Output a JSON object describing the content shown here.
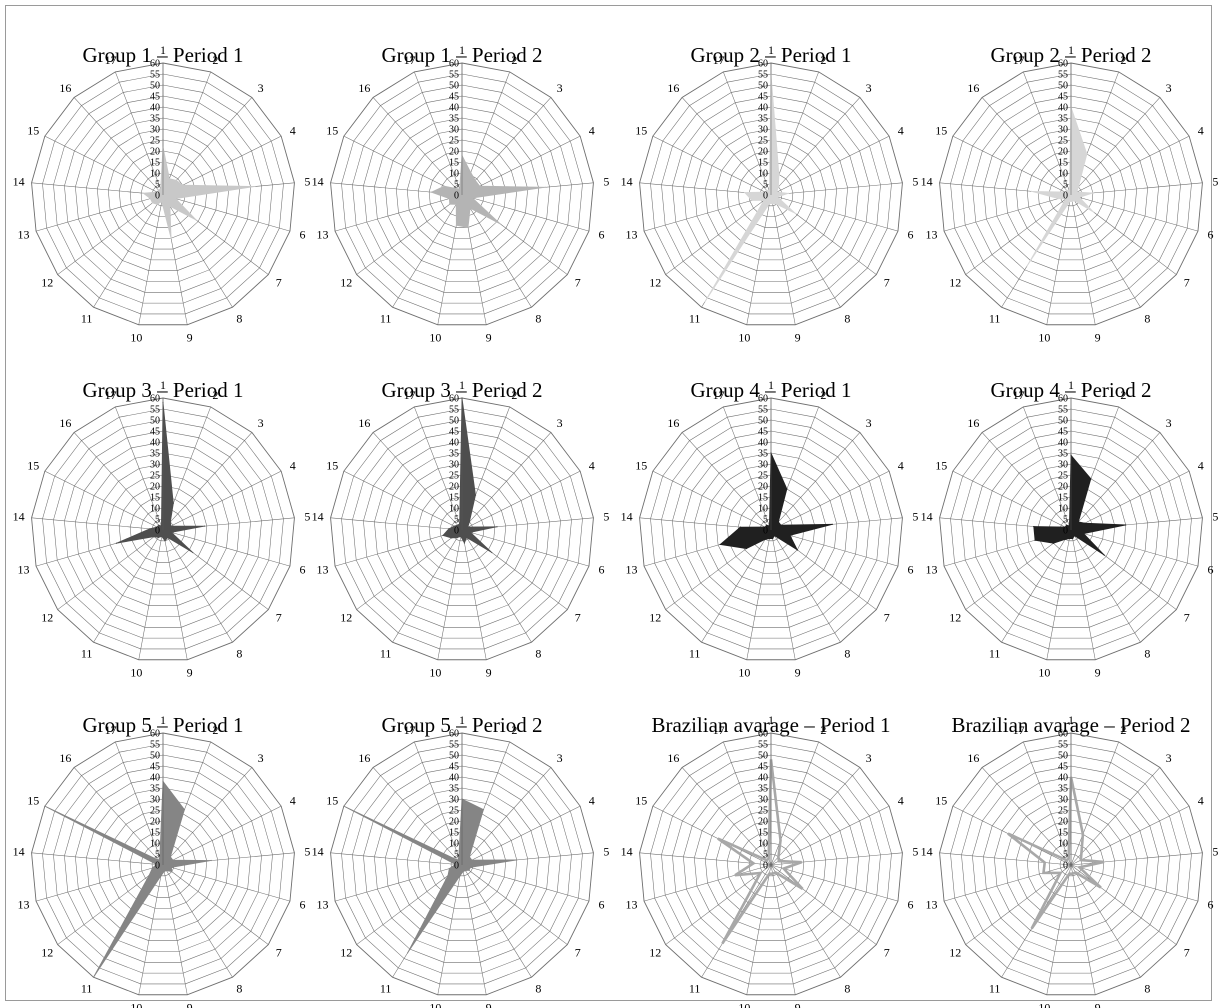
{
  "axis_labels": [
    "1",
    "2",
    "3",
    "4",
    "5",
    "6",
    "7",
    "8",
    "9",
    "10",
    "11",
    "12",
    "13",
    "14",
    "15",
    "16",
    "17"
  ],
  "tick_labels": [
    "0",
    "5",
    "10",
    "15",
    "20",
    "25",
    "30",
    "35",
    "40",
    "45",
    "50",
    "55",
    "60"
  ],
  "chart_data": [
    {
      "type": "radar",
      "title": "Group 1 – Period 1",
      "rmin": 0,
      "rmax": 60,
      "tick_step": 5,
      "style": "fill",
      "color": "#c8c8c8",
      "series": [
        {
          "values": [
            22,
            8,
            9,
            10,
            42,
            6,
            19,
            6,
            20,
            3,
            5,
            6,
            6,
            9,
            3,
            3,
            3
          ]
        }
      ]
    },
    {
      "type": "radar",
      "title": "Group 1 – Period 2",
      "rmin": 0,
      "rmax": 60,
      "tick_step": 5,
      "style": "fill",
      "color": "#b4b4b4",
      "series": [
        {
          "values": [
            18,
            11,
            9,
            9,
            38,
            5,
            22,
            7,
            15,
            14,
            5,
            7,
            6,
            14,
            9,
            4,
            3
          ]
        }
      ]
    },
    {
      "type": "radar",
      "title": "Group 2 – Period 1",
      "rmin": 0,
      "rmax": 60,
      "tick_step": 5,
      "style": "fill",
      "color": "#d6d6d6",
      "series": [
        {
          "values": [
            55,
            10,
            5,
            3,
            8,
            3,
            14,
            5,
            4,
            4,
            57,
            4,
            9,
            12,
            3,
            3,
            2
          ]
        }
      ]
    },
    {
      "type": "radar",
      "title": "Group 2 – Period 2",
      "rmin": 0,
      "rmax": 60,
      "tick_step": 5,
      "style": "fill",
      "color": "#d6d6d6",
      "series": [
        {
          "values": [
            40,
            20,
            5,
            3,
            10,
            4,
            13,
            3,
            3,
            3,
            38,
            3,
            6,
            18,
            3,
            3,
            2
          ]
        }
      ]
    },
    {
      "type": "radar",
      "title": "Group 3 – Period 1",
      "rmin": 0,
      "rmax": 60,
      "tick_step": 5,
      "style": "fill",
      "color": "#4e4e4e",
      "series": [
        {
          "values": [
            58,
            13,
            5,
            4,
            19,
            4,
            17,
            4,
            5,
            3,
            4,
            5,
            22,
            6,
            3,
            3,
            2
          ]
        }
      ]
    },
    {
      "type": "radar",
      "title": "Group 3 – Period 2",
      "rmin": 0,
      "rmax": 60,
      "tick_step": 5,
      "style": "fill",
      "color": "#4e4e4e",
      "series": [
        {
          "values": [
            60,
            17,
            5,
            3,
            16,
            4,
            17,
            4,
            6,
            3,
            4,
            6,
            9,
            6,
            4,
            3,
            3
          ]
        }
      ]
    },
    {
      "type": "radar",
      "title": "Group 4 – Period 1",
      "rmin": 0,
      "rmax": 60,
      "tick_step": 5,
      "style": "fill",
      "color": "#202020",
      "series": [
        {
          "values": [
            35,
            20,
            5,
            5,
            28,
            9,
            15,
            3,
            4,
            4,
            5,
            14,
            24,
            14,
            3,
            3,
            2
          ]
        }
      ]
    },
    {
      "type": "radar",
      "title": "Group 4 – Period 2",
      "rmin": 0,
      "rmax": 60,
      "tick_step": 5,
      "style": "fill",
      "color": "#202020",
      "series": [
        {
          "values": [
            34,
            25,
            5,
            7,
            25,
            6,
            19,
            3,
            4,
            4,
            5,
            10,
            17,
            17,
            3,
            3,
            2
          ]
        }
      ]
    },
    {
      "type": "radar",
      "title": "Group 5 – Period 1",
      "rmin": 0,
      "rmax": 60,
      "tick_step": 5,
      "style": "fill",
      "color": "#858585",
      "series": [
        {
          "values": [
            38,
            27,
            5,
            5,
            22,
            4,
            5,
            3,
            3,
            5,
            60,
            8,
            5,
            3,
            60,
            3,
            4
          ]
        }
      ]
    },
    {
      "type": "radar",
      "title": "Group 5 – Period 2",
      "rmin": 0,
      "rmax": 60,
      "tick_step": 5,
      "style": "fill",
      "color": "#858585",
      "series": [
        {
          "values": [
            30,
            27,
            5,
            5,
            25,
            4,
            4,
            3,
            3,
            5,
            47,
            8,
            6,
            3,
            60,
            3,
            4
          ]
        }
      ]
    },
    {
      "type": "radar",
      "title": "Brazilian avarage – Period 1",
      "rmin": 0,
      "rmax": 60,
      "tick_step": 5,
      "style": "line",
      "color": "#a8a8a8",
      "series": [
        {
          "values": [
            48,
            12,
            5,
            4,
            14,
            6,
            18,
            4,
            4,
            4,
            42,
            6,
            17,
            8,
            27,
            3,
            3
          ]
        }
      ]
    },
    {
      "type": "radar",
      "title": "Brazilian avarage – Period 2",
      "rmin": 0,
      "rmax": 60,
      "tick_step": 5,
      "style": "line",
      "color": "#a8a8a8",
      "series": [
        {
          "values": [
            40,
            15,
            7,
            5,
            15,
            4,
            17,
            4,
            4,
            4,
            34,
            6,
            13,
            12,
            32,
            3,
            3
          ]
        }
      ]
    }
  ]
}
